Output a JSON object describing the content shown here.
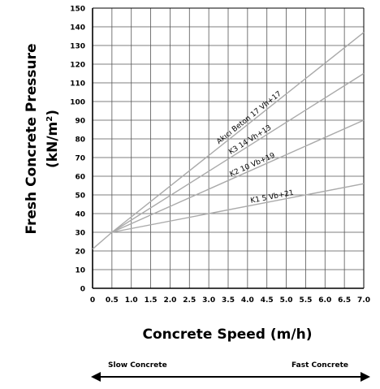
{
  "chart_data": {
    "type": "line",
    "xlabel": "Concrete Speed (m/h)",
    "ylabel_line1": "Fresh Concrete Pressure",
    "ylabel_line2": "(kN/m",
    "ylabel_sup": "2",
    "ylabel_close": ")",
    "xlim": [
      0,
      7
    ],
    "ylim": [
      0,
      150
    ],
    "x_ticks": [
      "0",
      "0.5",
      "1.0",
      "1.5",
      "2.0",
      "2.5",
      "3.0",
      "3.5",
      "4.0",
      "4.5",
      "5.0",
      "5.5",
      "6.0",
      "6.5",
      "7.0"
    ],
    "y_ticks": [
      "0",
      "10",
      "20",
      "30",
      "40",
      "50",
      "60",
      "70",
      "80",
      "90",
      "100",
      "110",
      "120",
      "130",
      "140",
      "150"
    ],
    "grid": true,
    "initial_segment": {
      "x": [
        0,
        0.5
      ],
      "y": [
        21,
        30
      ]
    },
    "series": [
      {
        "name": "Akıcı Beton 17 Vh+17",
        "x": [
          0.5,
          7.0
        ],
        "y": [
          30,
          137
        ],
        "label_at_x": 3.3
      },
      {
        "name": "K3 14 Vh+13",
        "x": [
          0.5,
          7.0
        ],
        "y": [
          30,
          115
        ],
        "label_at_x": 3.6
      },
      {
        "name": "K2 10 Vb+19",
        "x": [
          0.5,
          7.0
        ],
        "y": [
          30,
          90
        ],
        "label_at_x": 3.6
      },
      {
        "name": "K1 5 Vb+21",
        "x": [
          0.5,
          7.0
        ],
        "y": [
          30,
          56
        ],
        "label_at_x": 4.1
      }
    ],
    "speed_scale": {
      "left_label": "Slow Concrete",
      "right_label": "Fast Concrete"
    },
    "colors": {
      "grid": "#555555",
      "series": "#aaaaaa",
      "axis": "#000000"
    }
  }
}
